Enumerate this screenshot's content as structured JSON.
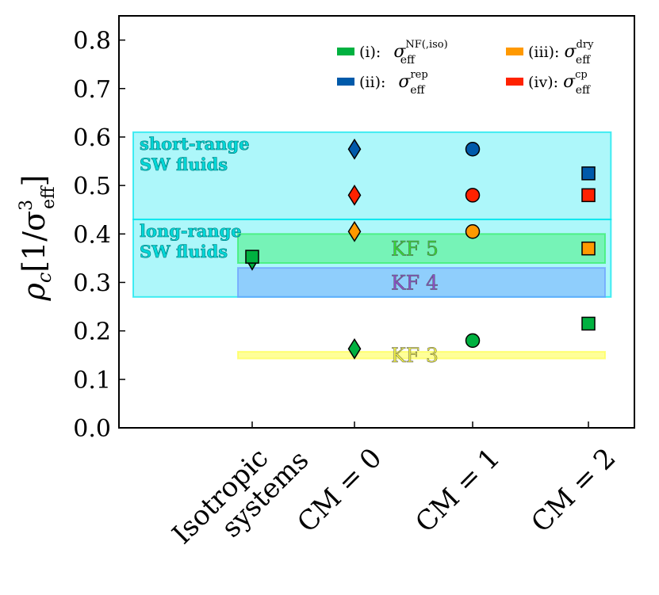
{
  "chart_data": {
    "type": "scatter",
    "title": "",
    "xlabel": "",
    "ylabel": {
      "main": "ρ",
      "sub": "c",
      "bracket": "[1/σ",
      "sup": "3",
      "subsc": "eff",
      "close": "]"
    },
    "ylim": [
      0.0,
      0.85
    ],
    "yticks": [
      0.0,
      0.1,
      0.2,
      0.3,
      0.4,
      0.5,
      0.6,
      0.7,
      0.8
    ],
    "ytick_labels": [
      "0.0",
      "0.1",
      "0.2",
      "0.3",
      "0.4",
      "0.5",
      "0.6",
      "0.7",
      "0.8"
    ],
    "categories": [
      "Isotropic systems",
      "CM = 0",
      "CM = 1",
      "CM = 2"
    ],
    "category_lines": [
      [
        "Isotropic",
        "systems"
      ],
      [
        "CM = 0"
      ],
      [
        "CM = 1"
      ],
      [
        "CM = 2"
      ]
    ],
    "grid": false,
    "legend_position": "top-right",
    "series": [
      {
        "name": "(i): σ_eff^NF(,iso)",
        "label": "(i):",
        "sym": "σ",
        "sub": "eff",
        "sup": "NF(,iso)",
        "color": "#00b140",
        "points": [
          {
            "x": "Isotropic systems",
            "y": 0.353,
            "marker": "square"
          },
          {
            "x": "Isotropic systems",
            "y": 0.338,
            "marker": "triangle-down"
          },
          {
            "x": "CM = 0",
            "y": 0.163,
            "marker": "diamond"
          },
          {
            "x": "CM = 1",
            "y": 0.18,
            "marker": "circle"
          },
          {
            "x": "CM = 2",
            "y": 0.215,
            "marker": "square"
          }
        ]
      },
      {
        "name": "(ii): σ_eff^rep",
        "label": "(ii):",
        "sym": "σ",
        "sub": "eff",
        "sup": "rep",
        "color": "#005aaa",
        "points": [
          {
            "x": "CM = 0",
            "y": 0.575,
            "marker": "diamond"
          },
          {
            "x": "CM = 1",
            "y": 0.575,
            "marker": "circle"
          },
          {
            "x": "CM = 2",
            "y": 0.525,
            "marker": "square"
          }
        ]
      },
      {
        "name": "(iii): σ_eff^dry",
        "label": "(iii):",
        "sym": "σ",
        "sub": "eff",
        "sup": "dry",
        "color": "#ff9900",
        "points": [
          {
            "x": "CM = 0",
            "y": 0.405,
            "marker": "diamond"
          },
          {
            "x": "CM = 1",
            "y": 0.405,
            "marker": "circle"
          },
          {
            "x": "CM = 2",
            "y": 0.37,
            "marker": "square"
          }
        ]
      },
      {
        "name": "(iv): σ_eff^cp",
        "label": "(iv):",
        "sym": "σ",
        "sub": "eff",
        "sup": "cp",
        "color": "#ff2200",
        "points": [
          {
            "x": "CM = 0",
            "y": 0.48,
            "marker": "diamond"
          },
          {
            "x": "CM = 1",
            "y": 0.48,
            "marker": "circle"
          },
          {
            "x": "CM = 2",
            "y": 0.48,
            "marker": "square"
          }
        ]
      }
    ],
    "bands": [
      {
        "name": "short-range SW fluids",
        "lines": [
          "short-range",
          "SW fluids"
        ],
        "y0": 0.43,
        "y1": 0.61,
        "x0": -0.9,
        "x1": 3.2,
        "color": "#00e5ee",
        "text_color": "#00d8d8",
        "opacity": 0.32
      },
      {
        "name": "long-range SW fluids",
        "lines": [
          "long-range",
          "SW fluids"
        ],
        "y0": 0.27,
        "y1": 0.43,
        "x0": -0.9,
        "x1": 3.2,
        "color": "#00e5ee",
        "text_color": "#00d8d8",
        "opacity": 0.32
      },
      {
        "name": "KF 5",
        "label": "KF 5",
        "y0": 0.34,
        "y1": 0.4,
        "x0": 0.0,
        "x1": 3.15,
        "color": "#33ee66",
        "text_color": "#33dd33",
        "opacity": 0.45
      },
      {
        "name": "KF 4",
        "label": "KF 4",
        "y0": 0.27,
        "y1": 0.33,
        "x0": 0.0,
        "x1": 3.15,
        "color": "#6a9cff",
        "text_color": "#8a4fc8",
        "opacity": 0.45
      },
      {
        "name": "KF 3",
        "label": "KF 3",
        "y0": 0.143,
        "y1": 0.157,
        "x0": 0.0,
        "x1": 3.15,
        "color": "#ffff55",
        "text_color": "#eeee44",
        "opacity": 0.6
      }
    ]
  }
}
